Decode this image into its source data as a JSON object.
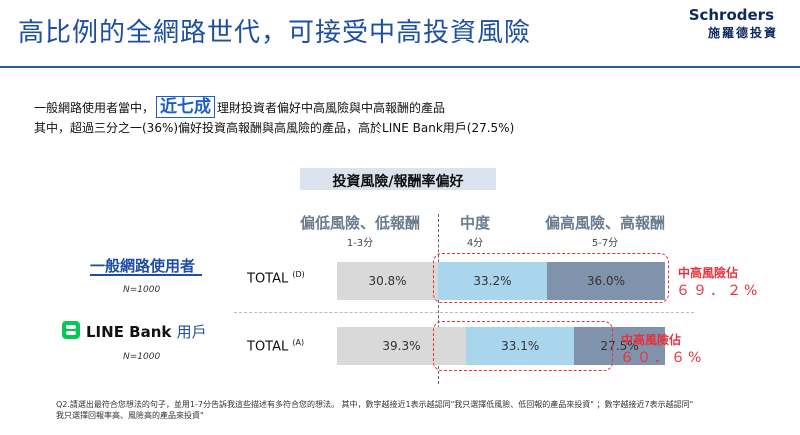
{
  "title": "高比例的全網路世代，可接受中高投資風險",
  "logo": {
    "en": "Schroders",
    "zh": "施羅德投資"
  },
  "subtitle1": {
    "before": "一般網路使用者當中，",
    "highlight": "近七成",
    "after": "理財投資者偏好中高風險與中高報酬的產品"
  },
  "subtitle2": "其中，超過三分之一(36%)偏好投資高報酬與高風險的產品，高於LINE Bank用戶(27.5%)",
  "tag": "投資風險/報酬率偏好",
  "categories": [
    {
      "name": "偏低風險、低報酬",
      "range": "1-3分"
    },
    {
      "name": "中度",
      "range": "4分"
    },
    {
      "name": "偏高風險、高報酬",
      "range": "5-7分"
    }
  ],
  "colors": {
    "low": "#d9d9d9",
    "mid": "#a9d6ec",
    "high": "#8093ad",
    "accent": "#e8313c",
    "brand": "#1e4fa3",
    "line_green": "#06c755"
  },
  "groups": [
    {
      "title": "一般網路使用者",
      "n": "N=1000",
      "row_label": "TOTAL",
      "sup": "(D)",
      "highlight_label": "中高風險佔",
      "highlight_value": "６９．２%"
    },
    {
      "title_brand": "LINE Bank",
      "title_suffix": "用戶",
      "n": "N=1000",
      "row_label": "TOTAL",
      "sup": "(A)",
      "highlight_label": "中高風險佔",
      "highlight_value": "６０．６%"
    }
  ],
  "chart_data": {
    "type": "bar",
    "stacked": true,
    "orientation": "horizontal",
    "categories": [
      "一般網路使用者 TOTAL (D)",
      "LINE Bank用戶 TOTAL (A)"
    ],
    "series": [
      {
        "name": "偏低風險、低報酬",
        "values": [
          30.8,
          39.3
        ],
        "labels": [
          "30.8%",
          "39.3%"
        ]
      },
      {
        "name": "中度",
        "values": [
          33.2,
          33.1
        ],
        "labels": [
          "33.2%",
          "33.1%"
        ]
      },
      {
        "name": "偏高風險、高報酬",
        "values": [
          36.0,
          27.5
        ],
        "labels": [
          "36.0%",
          "27.5%"
        ]
      }
    ],
    "xlim": [
      0,
      100
    ]
  },
  "footnote": {
    "line1": "Q2.請選出最符合您想法的句子，並用1-7分告訴我這些描述有多符合您的想法。 其中，數字越接近1表示越認同\"我只選擇低風險、低回報的產品來投資\" ；數字越接近7表示越認同\"",
    "line2": "我只選擇回報率高、風險高的產品來投資\""
  }
}
